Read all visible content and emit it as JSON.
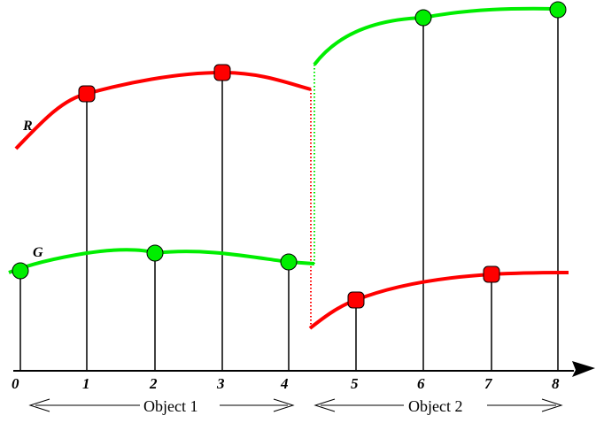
{
  "diagram": {
    "curves": [
      {
        "name": "R",
        "color": "#ff0000"
      },
      {
        "name": "G",
        "color": "#00ee00"
      }
    ],
    "x_ticks": [
      "0",
      "1",
      "2",
      "3",
      "4",
      "5",
      "6",
      "7",
      "8"
    ],
    "samples": [
      {
        "x": "0",
        "color": "green"
      },
      {
        "x": "1",
        "color": "red"
      },
      {
        "x": "2",
        "color": "green"
      },
      {
        "x": "3",
        "color": "red"
      },
      {
        "x": "4",
        "color": "green"
      },
      {
        "x": "5",
        "color": "red"
      },
      {
        "x": "6",
        "color": "green"
      },
      {
        "x": "7",
        "color": "red"
      },
      {
        "x": "8",
        "color": "green"
      }
    ],
    "objects": [
      {
        "label": "Object 1"
      },
      {
        "label": "Object 2"
      }
    ],
    "colors": {
      "red": "#ff0000",
      "green": "#00ee00",
      "axis": "#000000"
    }
  }
}
